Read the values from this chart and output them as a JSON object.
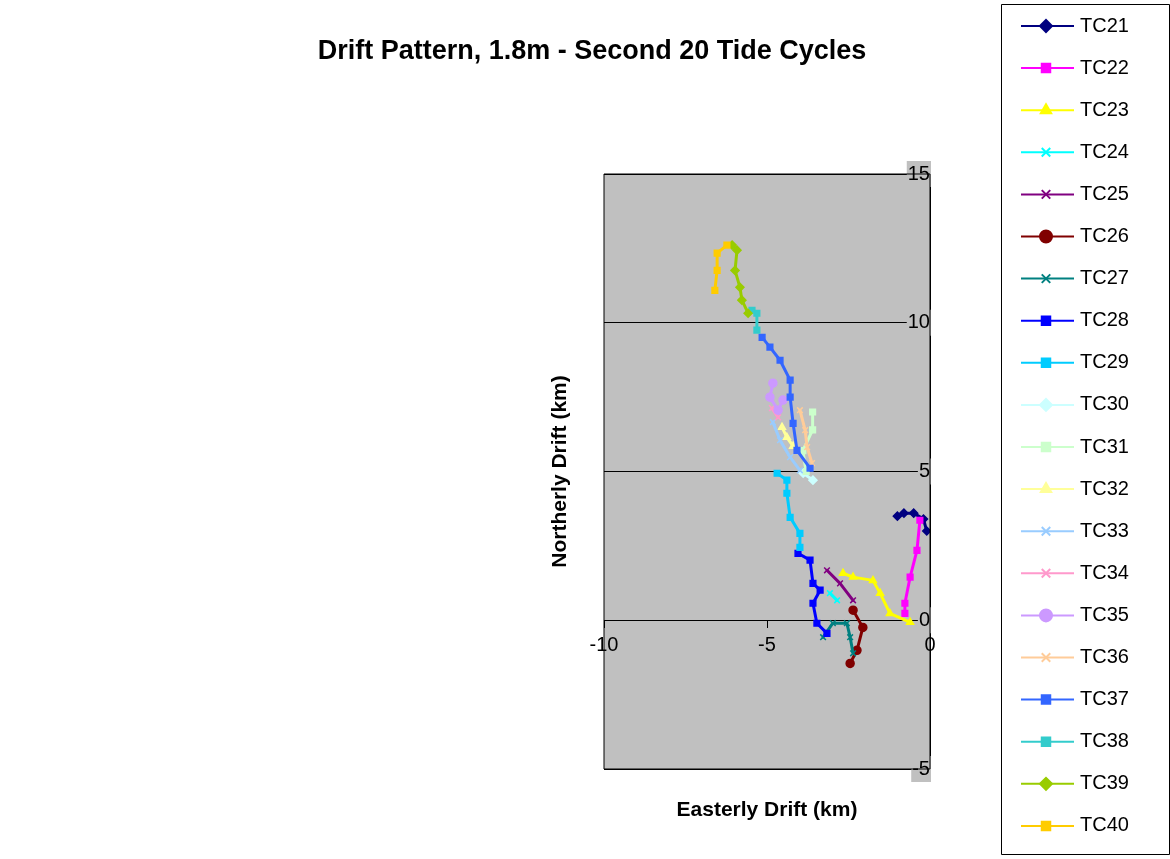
{
  "chart_data": {
    "type": "line",
    "title": "Drift Pattern, 1.8m - Second 20 Tide Cycles",
    "xlabel": "Easterly Drift (km)",
    "ylabel": "Northerly Drift (km)",
    "xlim": [
      -10,
      0
    ],
    "xticks": [
      -10,
      -5,
      0
    ],
    "ylim": [
      -5,
      15
    ],
    "yticks": [
      -5,
      0,
      5,
      10,
      15
    ],
    "grid": "y",
    "legend": "right",
    "series": [
      {
        "name": "TC21",
        "color": "#000080",
        "marker": "diamond",
        "x": [
          -0.1,
          -0.2,
          -0.5,
          -0.8,
          -1.0
        ],
        "values": [
          3.0,
          3.4,
          3.6,
          3.6,
          3.5
        ]
      },
      {
        "name": "TC22",
        "color": "#ff00ff",
        "marker": "square",
        "x": [
          -0.31,
          -0.4,
          -0.61,
          -0.77,
          -0.77
        ],
        "values": [
          3.36,
          2.35,
          1.45,
          0.57,
          0.23
        ]
      },
      {
        "name": "TC23",
        "color": "#ffff00",
        "marker": "triangle",
        "x": [
          -0.61,
          -1.23,
          -1.53,
          -1.75,
          -2.36,
          -2.67
        ],
        "values": [
          -0.07,
          0.23,
          0.91,
          1.34,
          1.45,
          1.58
        ]
      },
      {
        "name": "TC24",
        "color": "#00ffff",
        "marker": "cross",
        "x": [
          -2.85,
          -3.07
        ],
        "values": [
          0.67,
          0.91
        ]
      },
      {
        "name": "TC25",
        "color": "#800080",
        "marker": "cross",
        "x": [
          -3.16,
          -2.76,
          -2.36
        ],
        "values": [
          1.68,
          1.24,
          0.67
        ]
      },
      {
        "name": "TC26",
        "color": "#800000",
        "marker": "circle",
        "x": [
          -2.36,
          -2.06,
          -2.24,
          -2.45
        ],
        "values": [
          0.34,
          -0.24,
          -1.01,
          -1.45
        ]
      },
      {
        "name": "TC27",
        "color": "#008080",
        "marker": "cross",
        "x": [
          -2.36,
          -2.45,
          -2.55,
          -2.98,
          -3.28
        ],
        "values": [
          -1.11,
          -0.57,
          -0.1,
          -0.1,
          -0.57
        ]
      },
      {
        "name": "TC28",
        "color": "#0000ff",
        "marker": "square",
        "x": [
          -3.16,
          -3.47,
          -3.59,
          -3.37,
          -3.59,
          -3.68,
          -4.05
        ],
        "values": [
          -0.44,
          -0.1,
          0.57,
          1.01,
          1.24,
          2.02,
          2.25
        ]
      },
      {
        "name": "TC29",
        "color": "#00ccff",
        "marker": "square",
        "x": [
          -3.99,
          -3.99,
          -4.29,
          -4.39,
          -4.39,
          -4.69
        ],
        "values": [
          2.45,
          2.92,
          3.46,
          4.27,
          4.71,
          4.94
        ]
      },
      {
        "name": "TC30",
        "color": "#ccffff",
        "marker": "diamond",
        "x": [
          -3.89,
          -3.59
        ],
        "values": [
          4.94,
          4.71
        ]
      },
      {
        "name": "TC31",
        "color": "#ccffcc",
        "marker": "square",
        "x": [
          -3.6,
          -3.6,
          -3.9,
          -3.8
        ],
        "values": [
          7.0,
          6.4,
          5.7,
          5.0
        ]
      },
      {
        "name": "TC32",
        "color": "#ffff99",
        "marker": "triangle",
        "x": [
          -4.54,
          -4.39,
          -4.2
        ],
        "values": [
          6.49,
          6.15,
          5.85
        ]
      },
      {
        "name": "TC33",
        "color": "#99ccff",
        "marker": "cross",
        "x": [
          -4.82,
          -4.6,
          -4.29,
          -3.99
        ],
        "values": [
          6.66,
          6.05,
          5.48,
          5.04
        ]
      },
      {
        "name": "TC34",
        "color": "#ff99cc",
        "marker": "cross",
        "x": [
          -4.85,
          -4.66
        ],
        "values": [
          7.13,
          6.82
        ]
      },
      {
        "name": "TC35",
        "color": "#cc99ff",
        "marker": "circle",
        "x": [
          -4.82,
          -4.91,
          -4.66,
          -4.51
        ],
        "values": [
          7.97,
          7.5,
          7.06,
          7.4
        ]
      },
      {
        "name": "TC36",
        "color": "#ffcc99",
        "marker": "cross",
        "x": [
          -3.99,
          -3.83,
          -3.77,
          -3.62
        ],
        "values": [
          7.06,
          6.39,
          5.82,
          5.28
        ]
      },
      {
        "name": "TC37",
        "color": "#3366ff",
        "marker": "square",
        "x": [
          -3.68,
          -4.08,
          -4.2,
          -4.29,
          -4.29,
          -4.6,
          -4.91,
          -5.15
        ],
        "values": [
          5.11,
          5.71,
          6.62,
          7.5,
          8.07,
          8.74,
          9.18,
          9.51
        ]
      },
      {
        "name": "TC38",
        "color": "#33cccc",
        "marker": "square",
        "x": [
          -5.31,
          -5.31,
          -5.46
        ],
        "values": [
          9.75,
          10.32,
          10.42
        ]
      },
      {
        "name": "TC39",
        "color": "#99cc00",
        "marker": "diamond",
        "x": [
          -5.58,
          -5.77,
          -5.83,
          -5.98,
          -5.92,
          -6.07
        ],
        "values": [
          10.32,
          10.76,
          11.19,
          11.76,
          12.44,
          12.61
        ]
      },
      {
        "name": "TC40",
        "color": "#ffcc00",
        "marker": "square",
        "x": [
          -6.23,
          -6.53,
          -6.53,
          -6.6
        ],
        "values": [
          12.61,
          12.34,
          11.76,
          11.09
        ]
      }
    ]
  }
}
